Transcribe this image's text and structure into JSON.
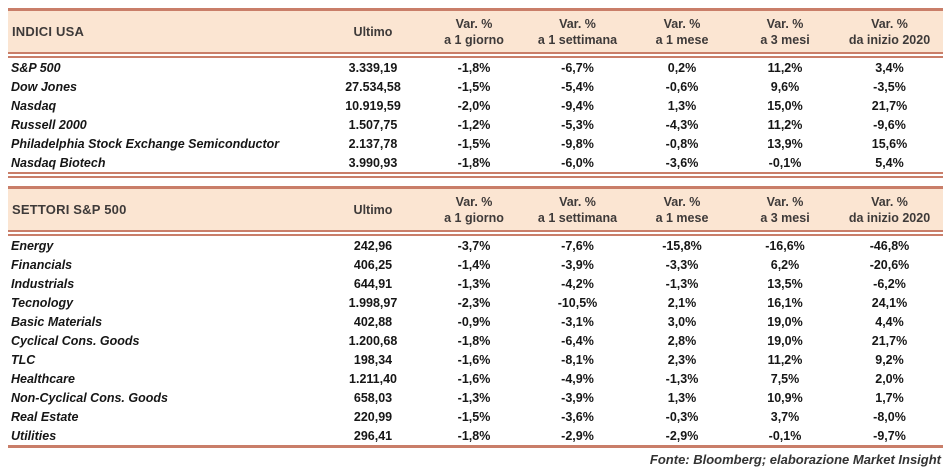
{
  "source_note": "Fonte: Bloomberg; elaborazione Market Insight",
  "colors": {
    "line": "#c97e69",
    "header_background": "#fbe5d2",
    "header_text": "#3e3a39",
    "data_text": "#161616"
  },
  "columns": [
    {
      "line1": "Ultimo",
      "line2": ""
    },
    {
      "line1": "Var. %",
      "line2": "a 1 giorno"
    },
    {
      "line1": "Var. %",
      "line2": "a 1 settimana"
    },
    {
      "line1": "Var. %",
      "line2": "a 1 mese"
    },
    {
      "line1": "Var. %",
      "line2": "a 3 mesi"
    },
    {
      "line1": "Var. %",
      "line2": "da inizio 2020"
    }
  ],
  "tables": [
    {
      "title": "INDICI USA",
      "rows": [
        {
          "label": "S&P 500",
          "values": [
            "3.339,19",
            "-1,8%",
            "-6,7%",
            "0,2%",
            "11,2%",
            "3,4%"
          ]
        },
        {
          "label": "Dow Jones",
          "values": [
            "27.534,58",
            "-1,5%",
            "-5,4%",
            "-0,6%",
            "9,6%",
            "-3,5%"
          ]
        },
        {
          "label": "Nasdaq",
          "values": [
            "10.919,59",
            "-2,0%",
            "-9,4%",
            "1,3%",
            "15,0%",
            "21,7%"
          ]
        },
        {
          "label": "Russell 2000",
          "values": [
            "1.507,75",
            "-1,2%",
            "-5,3%",
            "-4,3%",
            "11,2%",
            "-9,6%"
          ]
        },
        {
          "label": "Philadelphia Stock Exchange Semiconductor",
          "values": [
            "2.137,78",
            "-1,5%",
            "-9,8%",
            "-0,8%",
            "13,9%",
            "15,6%"
          ]
        },
        {
          "label": "Nasdaq Biotech",
          "values": [
            "3.990,93",
            "-1,8%",
            "-6,0%",
            "-3,6%",
            "-0,1%",
            "5,4%"
          ]
        }
      ]
    },
    {
      "title": "SETTORI S&P 500",
      "rows": [
        {
          "label": "Energy",
          "values": [
            "242,96",
            "-3,7%",
            "-7,6%",
            "-15,8%",
            "-16,6%",
            "-46,8%"
          ]
        },
        {
          "label": "Financials",
          "values": [
            "406,25",
            "-1,4%",
            "-3,9%",
            "-3,3%",
            "6,2%",
            "-20,6%"
          ]
        },
        {
          "label": "Industrials",
          "values": [
            "644,91",
            "-1,3%",
            "-4,2%",
            "-1,3%",
            "13,5%",
            "-6,2%"
          ]
        },
        {
          "label": "Tecnology",
          "values": [
            "1.998,97",
            "-2,3%",
            "-10,5%",
            "2,1%",
            "16,1%",
            "24,1%"
          ]
        },
        {
          "label": "Basic Materials",
          "values": [
            "402,88",
            "-0,9%",
            "-3,1%",
            "3,0%",
            "19,0%",
            "4,4%"
          ]
        },
        {
          "label": "Cyclical Cons. Goods",
          "values": [
            "1.200,68",
            "-1,8%",
            "-6,4%",
            "2,8%",
            "19,0%",
            "21,7%"
          ]
        },
        {
          "label": "TLC",
          "values": [
            "198,34",
            "-1,6%",
            "-8,1%",
            "2,3%",
            "11,2%",
            "9,2%"
          ]
        },
        {
          "label": "Healthcare",
          "values": [
            "1.211,40",
            "-1,6%",
            "-4,9%",
            "-1,3%",
            "7,5%",
            "2,0%"
          ]
        },
        {
          "label": "Non-Cyclical Cons. Goods",
          "values": [
            "658,03",
            "-1,3%",
            "-3,9%",
            "1,3%",
            "10,9%",
            "1,7%"
          ]
        },
        {
          "label": "Real Estate",
          "values": [
            "220,99",
            "-1,5%",
            "-3,6%",
            "-0,3%",
            "3,7%",
            "-8,0%"
          ]
        },
        {
          "label": "Utilities",
          "values": [
            "296,41",
            "-1,8%",
            "-2,9%",
            "-2,9%",
            "-0,1%",
            "-9,7%"
          ]
        }
      ]
    }
  ]
}
